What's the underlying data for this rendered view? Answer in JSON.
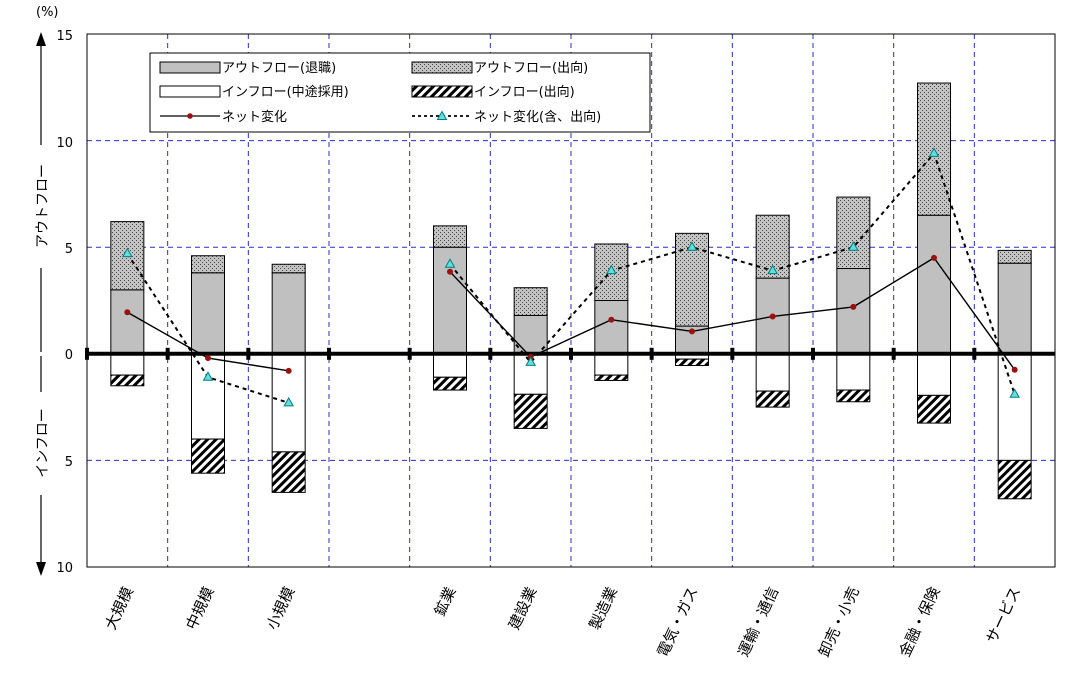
{
  "chart_data": {
    "type": "bar",
    "unit": "(%)",
    "y_top_label": "アウトフロー",
    "y_bottom_label": "インフロー",
    "yticks_positive": [
      "15",
      "10",
      "5",
      "0"
    ],
    "yticks_negative": [
      "5",
      "10"
    ],
    "ylim": [
      -10,
      15
    ],
    "grid": true,
    "legend_position": "top-left",
    "categories": [
      "大規模",
      "中規模",
      "小規模",
      "",
      "鉱業",
      "建設業",
      "製造業",
      "電気・ガス",
      "運輸・通信",
      "卸売・小売",
      "金融・保険",
      "サービス"
    ],
    "series": [
      {
        "name": "アウトフロー(退職)",
        "kind": "bar-up",
        "values": [
          3.0,
          3.8,
          3.8,
          null,
          5.0,
          1.8,
          2.5,
          1.3,
          3.55,
          4.0,
          6.5,
          4.25
        ]
      },
      {
        "name": "アウトフロー(出向)",
        "kind": "bar-up-stack",
        "values": [
          3.2,
          0.8,
          0.4,
          null,
          1.0,
          1.3,
          2.65,
          4.35,
          2.95,
          3.35,
          6.2,
          0.6
        ]
      },
      {
        "name": "インフロー(中途採用)",
        "kind": "bar-down",
        "values": [
          1.0,
          4.0,
          4.6,
          null,
          1.1,
          1.9,
          1.0,
          0.25,
          1.75,
          1.7,
          1.95,
          5.0
        ]
      },
      {
        "name": "インフロー(出向)",
        "kind": "bar-down-stack",
        "values": [
          0.5,
          1.6,
          1.9,
          null,
          0.6,
          1.6,
          0.25,
          0.3,
          0.75,
          0.55,
          1.3,
          1.8
        ]
      },
      {
        "name": "ネット変化",
        "kind": "line-solid",
        "values": [
          1.95,
          -0.2,
          -0.8,
          null,
          3.85,
          -0.15,
          1.6,
          1.05,
          1.75,
          2.2,
          4.5,
          -0.75
        ]
      },
      {
        "name": "ネット変化(含、出向)",
        "kind": "line-dashed",
        "values": [
          4.7,
          -1.1,
          -2.3,
          null,
          4.2,
          -0.4,
          3.9,
          5.0,
          3.9,
          5.0,
          9.4,
          -1.9
        ]
      }
    ]
  }
}
